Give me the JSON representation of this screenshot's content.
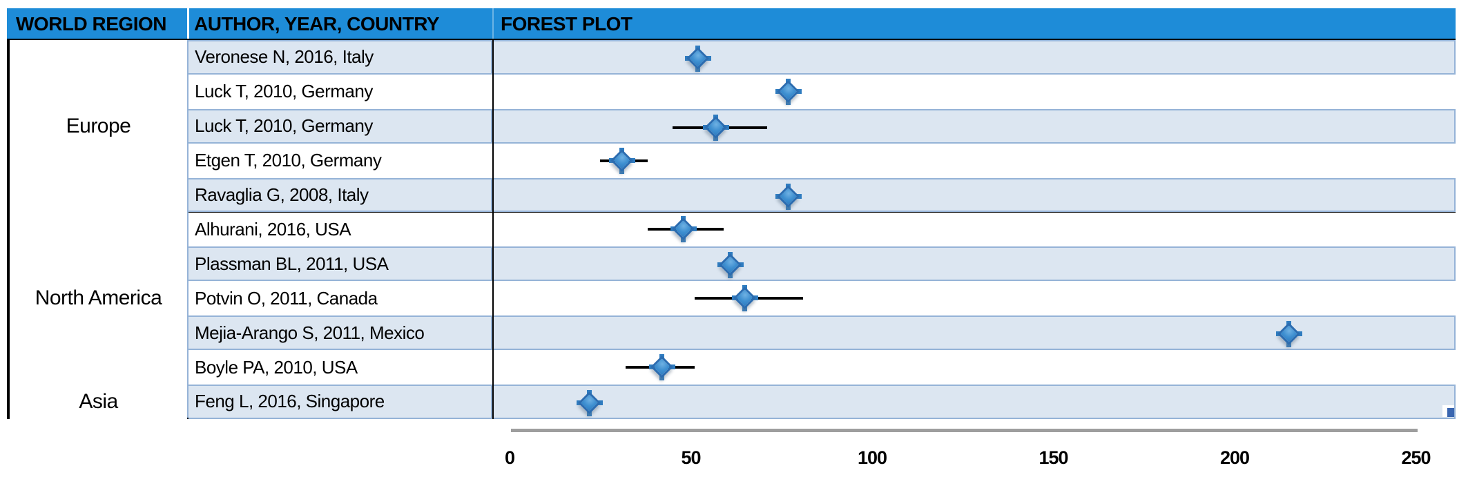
{
  "header": {
    "col_region": "WORLD REGION",
    "col_author": "AUTHOR, YEAR, COUNTRY",
    "col_plot": "FOREST PLOT"
  },
  "regions": [
    {
      "label": "Europe",
      "rows": 5
    },
    {
      "label": "North America",
      "rows": 5
    },
    {
      "label": "Asia",
      "rows": 1
    }
  ],
  "colors": {
    "header_bg": "#1E8CD8",
    "row_shaded": "#DCE6F1",
    "row_border": "#95B3D7",
    "group_border": "#000000",
    "marker_fill": "#3E8FD0",
    "marker_border": "#2B6CB0",
    "whisker": "#000000",
    "axis_line": "#9E9E9E",
    "corner_handle": "#3A66B0",
    "text": "#000000"
  },
  "chart_data": {
    "type": "forest",
    "title": "FOREST PLOT",
    "xlabel": "",
    "xlim": [
      0,
      250
    ],
    "xticks": [
      0,
      50,
      100,
      150,
      200,
      250
    ],
    "grid": false,
    "legend": "none",
    "rows": [
      {
        "region": "Europe",
        "study": "Veronese N, 2016, Italy",
        "estimate": 52,
        "ci": null
      },
      {
        "region": "Europe",
        "study": "Luck T, 2010, Germany",
        "estimate": 77,
        "ci": null
      },
      {
        "region": "Europe",
        "study": "Luck T, 2010, Germany",
        "estimate": 57,
        "ci": [
          45,
          71
        ]
      },
      {
        "region": "Europe",
        "study": "Etgen T, 2010, Germany",
        "estimate": 31,
        "ci": [
          25,
          38
        ]
      },
      {
        "region": "Europe",
        "study": "Ravaglia G, 2008, Italy",
        "estimate": 77,
        "ci": null
      },
      {
        "region": "North America",
        "study": "Alhurani, 2016, USA",
        "estimate": 48,
        "ci": [
          38,
          59
        ]
      },
      {
        "region": "North America",
        "study": "Plassman BL, 2011, USA",
        "estimate": 61,
        "ci": null
      },
      {
        "region": "North America",
        "study": "Potvin O, 2011, Canada",
        "estimate": 65,
        "ci": [
          51,
          81
        ]
      },
      {
        "region": "North America",
        "study": "Mejia-Arango S, 2011, Mexico",
        "estimate": 215,
        "ci": null
      },
      {
        "region": "North America",
        "study": "Boyle PA, 2010, USA",
        "estimate": 42,
        "ci": [
          32,
          51
        ]
      },
      {
        "region": "Asia",
        "study": "Feng L, 2016, Singapore",
        "estimate": 22,
        "ci": null
      }
    ]
  }
}
